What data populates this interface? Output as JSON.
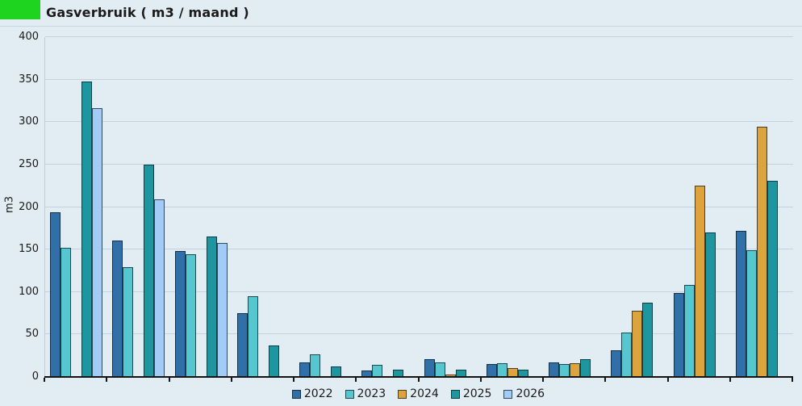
{
  "header": {
    "title": "Gasverbruik ( m3 / maand )",
    "accent_color": "#1fd41f"
  },
  "colors": {
    "background": "#e2ecf3",
    "gridline": "#c3d2dc",
    "axis": "#141414",
    "text": "#1a1a1a"
  },
  "chart_data": {
    "type": "bar",
    "title": "Gasverbruik ( m3 / maand )",
    "xlabel": "",
    "ylabel": "m3",
    "ylim": [
      0,
      400
    ],
    "yticks": [
      0,
      50,
      100,
      150,
      200,
      250,
      300,
      350,
      400
    ],
    "grid": true,
    "legend_position": "bottom",
    "n_groups": 12,
    "x_tick_labels": [
      "",
      "",
      "",
      "",
      "",
      "",
      "",
      "",
      "",
      "",
      "",
      ""
    ],
    "series": [
      {
        "name": "2022",
        "color": "#316fa8",
        "values": [
          194,
          161,
          148,
          75,
          17,
          8,
          21,
          15,
          17,
          31,
          99,
          172
        ]
      },
      {
        "name": "2023",
        "color": "#57c7cf",
        "values": [
          152,
          129,
          144,
          95,
          27,
          14,
          17,
          16,
          15,
          52,
          108,
          149
        ]
      },
      {
        "name": "2024",
        "color": "#dda43e",
        "values": [
          0,
          0,
          0,
          0,
          0,
          0,
          3,
          10,
          16,
          78,
          225,
          295
        ]
      },
      {
        "name": "2025",
        "color": "#1e96a0",
        "values": [
          348,
          250,
          165,
          37,
          12,
          9,
          9,
          9,
          21,
          87,
          170,
          231
        ]
      },
      {
        "name": "2026",
        "color": "#a2cbf7",
        "values": [
          316,
          209,
          158,
          0,
          0,
          0,
          0,
          0,
          0,
          0,
          0,
          0
        ]
      }
    ]
  }
}
